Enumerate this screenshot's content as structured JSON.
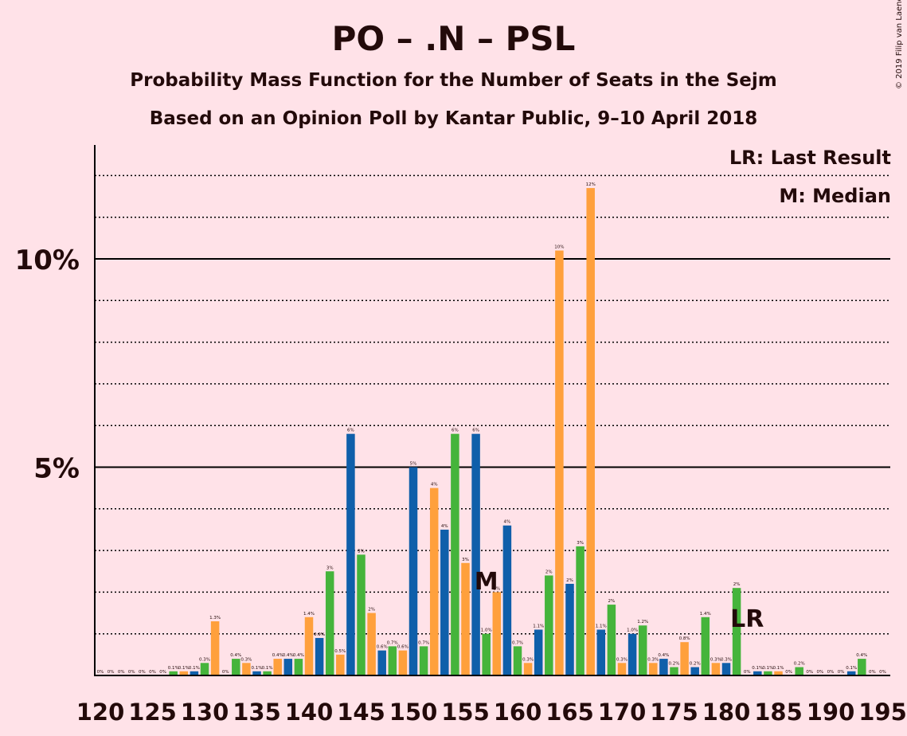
{
  "title": "PO – .N – PSL",
  "subtitle1": "Probability Mass Function for the Number of Seats in the Sejm",
  "subtitle2": "Based on an Opinion Poll by Kantar Public, 9–10 April 2018",
  "copyright": "© 2019 Filip van Laenen",
  "legend": {
    "lr": "LR: Last Result",
    "m": "M: Median"
  },
  "colors": {
    "background": "#FFE2E8",
    "blue": "#0F5FAA",
    "green": "#45B43B",
    "orange": "#FFA03C",
    "text": "#230a0a"
  },
  "chart_data": {
    "type": "bar",
    "x": [
      120,
      121,
      122,
      123,
      124,
      125,
      126,
      127,
      128,
      129,
      130,
      131,
      132,
      133,
      134,
      135,
      136,
      137,
      138,
      139,
      140,
      141,
      142,
      143,
      144,
      145,
      146,
      147,
      148,
      149,
      150,
      151,
      152,
      153,
      154,
      155,
      156,
      157,
      158,
      159,
      160,
      161,
      162,
      163,
      164,
      165,
      166,
      167,
      168,
      169,
      170,
      171,
      172,
      173,
      174,
      175,
      176,
      177,
      178,
      179,
      180,
      181,
      182,
      183,
      184,
      185,
      186,
      187,
      188,
      189,
      190,
      191,
      192,
      193,
      194,
      195
    ],
    "values": [
      0,
      0,
      0,
      0,
      0,
      0,
      0,
      0.1,
      0.1,
      0.1,
      0.3,
      1.3,
      0,
      0.4,
      0.3,
      0.1,
      0.1,
      0.4,
      0.4,
      0.4,
      1.4,
      0.9,
      2.5,
      0.5,
      5.8,
      2.9,
      1.5,
      0.6,
      0.7,
      0.6,
      5.0,
      0.7,
      4.5,
      3.5,
      5.8,
      2.7,
      5.8,
      1.0,
      2.0,
      3.6,
      0.7,
      0.3,
      1.1,
      2.4,
      10.2,
      2.2,
      3.1,
      11.7,
      1.1,
      1.7,
      0.3,
      1.0,
      1.2,
      0.3,
      0.4,
      0.2,
      0.8,
      0.2,
      1.4,
      0.3,
      0.3,
      2.1,
      0,
      0.1,
      0.1,
      0.1,
      0,
      0.2,
      0,
      0,
      0,
      0,
      0.1,
      0.4,
      0,
      0
    ],
    "value_labels": [
      "0%",
      "0%",
      "0%",
      "0%",
      "0%",
      "0%",
      "0%",
      "0.1%",
      "0.1%",
      "0.1%",
      "0.3%",
      "1.3%",
      "0%",
      "0.4%",
      "0.3%",
      "0.1%",
      "0.1%",
      "0.4%",
      "0.4%",
      "0.4%",
      "1.4%",
      "0.9%",
      "3%",
      "0.5%",
      "6%",
      "3%",
      "2%",
      "0.6%",
      "0.7%",
      "0.6%",
      "5%",
      "0.7%",
      "4%",
      "4%",
      "6%",
      "3%",
      "6%",
      "1.0%",
      "2%",
      "4%",
      "0.7%",
      "0.3%",
      "1.1%",
      "2%",
      "10%",
      "2%",
      "3%",
      "12%",
      "1.1%",
      "2%",
      "0.3%",
      "1.0%",
      "1.2%",
      "0.3%",
      "0.4%",
      "0.2%",
      "0.8%",
      "0.2%",
      "1.4%",
      "0.3%",
      "0.3%",
      "2%",
      "0%",
      "0.1%",
      "0.1%",
      "0.1%",
      "0%",
      "0.2%",
      "0%",
      "0%",
      "0%",
      "0%",
      "0.1%",
      "0.4%",
      "0%",
      "0%"
    ],
    "x_ticks": [
      120,
      125,
      130,
      135,
      140,
      145,
      150,
      155,
      160,
      165,
      170,
      175,
      180,
      185,
      190,
      195
    ],
    "y_ticks": [
      {
        "value": 5,
        "label": "5%"
      },
      {
        "value": 10,
        "label": "10%"
      }
    ],
    "ylim": [
      0,
      12.7
    ],
    "xlim": [
      120,
      195
    ],
    "grid": "dotted lines every 1%, solid at 5% and 10%",
    "median": {
      "x": 157,
      "label": "M"
    },
    "last_result": {
      "x": 182,
      "label": "LR"
    },
    "legend_position": "top-right"
  }
}
